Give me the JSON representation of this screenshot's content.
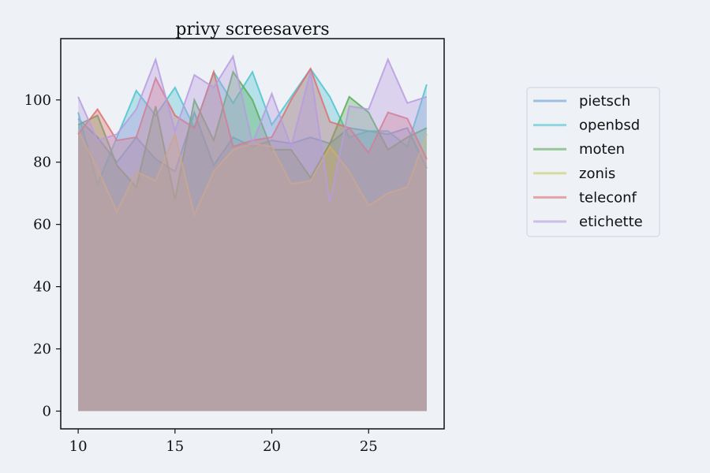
{
  "chart_data": {
    "type": "area",
    "title": "privy screesavers",
    "xlabel": "",
    "ylabel": "",
    "xlim": [
      9.1,
      28.9
    ],
    "ylim": [
      -5.7,
      119.7
    ],
    "xticks": [
      10,
      15,
      20,
      25
    ],
    "yticks": [
      0,
      20,
      40,
      60,
      80,
      100
    ],
    "grid": false,
    "legend_position": "outside-right",
    "x": [
      10,
      11,
      12,
      13,
      14,
      15,
      16,
      17,
      18,
      19,
      20,
      21,
      22,
      23,
      24,
      25,
      26,
      27,
      28
    ],
    "series": [
      {
        "name": "pietsch",
        "color": "#6b9fd4",
        "values": [
          94,
          88,
          80,
          88,
          81,
          77,
          96,
          79,
          88,
          85,
          87,
          86,
          88,
          86,
          91,
          90,
          89,
          91,
          78
        ]
      },
      {
        "name": "openbsd",
        "color": "#4cc4d0",
        "values": [
          96,
          73,
          88,
          103,
          95,
          104,
          91,
          109,
          99,
          109,
          92,
          101,
          110,
          101,
          88,
          90,
          90,
          85,
          105
        ]
      },
      {
        "name": "moten",
        "color": "#5aab5a",
        "values": [
          92,
          95,
          79,
          72,
          98,
          68,
          100,
          87,
          109,
          100,
          84,
          84,
          75,
          86,
          101,
          96,
          84,
          88,
          91
        ]
      },
      {
        "name": "zonis",
        "color": "#cccc66",
        "values": [
          90,
          78,
          64,
          77,
          74,
          89,
          63,
          77,
          84,
          86,
          85,
          73,
          74,
          85,
          77,
          66,
          70,
          72,
          89
        ]
      },
      {
        "name": "teleconf",
        "color": "#e07070",
        "values": [
          89,
          97,
          87,
          88,
          107,
          95,
          91,
          109,
          85,
          87,
          88,
          100,
          110,
          93,
          91,
          83,
          96,
          94,
          81
        ]
      },
      {
        "name": "etichette",
        "color": "#b79be0",
        "values": [
          101,
          87,
          89,
          97,
          113,
          90,
          108,
          104,
          114,
          86,
          102,
          85,
          109,
          67,
          98,
          97,
          113,
          99,
          101
        ]
      }
    ]
  }
}
